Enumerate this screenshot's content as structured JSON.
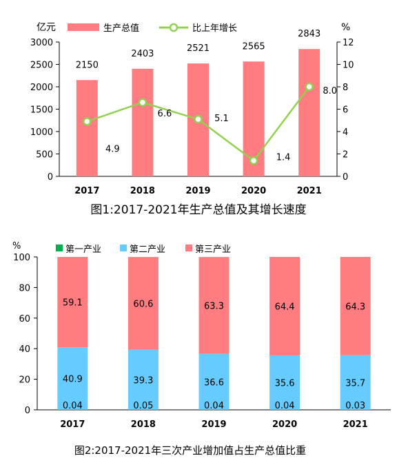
{
  "colors": {
    "gdp_bar": "#FF7C80",
    "growth_line": "#92D050",
    "primary": "#00B050",
    "secondary": "#66CCFF",
    "tertiary": "#FF7C80",
    "axis": "#000000"
  },
  "chart_data": [
    {
      "type": "bar",
      "title": "图1:2017-2021年生产总值及其增长速度",
      "categories": [
        "2017",
        "2018",
        "2019",
        "2020",
        "2021"
      ],
      "ylabel": "亿元",
      "y2label": "%",
      "ylim": [
        0,
        3000
      ],
      "y2lim": [
        0,
        12
      ],
      "yticks": [
        "0",
        "500",
        "1000",
        "1500",
        "2000",
        "2500",
        "3000"
      ],
      "y2ticks": [
        "0",
        "2",
        "4",
        "6",
        "8",
        "10",
        "12"
      ],
      "legend_position": "top",
      "series": [
        {
          "name": "生产总值",
          "kind": "bar",
          "axis": "left",
          "values": [
            2150,
            2403,
            2521,
            2565,
            2843
          ],
          "labels": [
            "2150",
            "2403",
            "2521",
            "2565",
            "2843"
          ]
        },
        {
          "name": "比上年增长",
          "kind": "line",
          "axis": "right",
          "values": [
            4.9,
            6.6,
            5.1,
            1.4,
            8.0
          ],
          "labels": [
            "4.9",
            "6.6",
            "5.1",
            "1.4",
            "8.0"
          ]
        }
      ]
    },
    {
      "type": "bar",
      "stacked": true,
      "title": "图2:2017-2021年三次产业增加值占生产总值比重",
      "categories": [
        "2017",
        "2018",
        "2019",
        "2020",
        "2021"
      ],
      "ylabel": "%",
      "ylim": [
        0,
        100
      ],
      "yticks": [
        "0",
        "20",
        "40",
        "60",
        "80",
        "100"
      ],
      "legend_position": "top",
      "series": [
        {
          "name": "第一产业",
          "values": [
            0.04,
            0.05,
            0.04,
            0.04,
            0.03
          ],
          "labels": [
            "0.04",
            "0.05",
            "0.04",
            "0.04",
            "0.03"
          ]
        },
        {
          "name": "第二产业",
          "values": [
            40.9,
            39.3,
            36.6,
            35.6,
            35.7
          ],
          "labels": [
            "40.9",
            "39.3",
            "36.6",
            "35.6",
            "35.7"
          ]
        },
        {
          "name": "第三产业",
          "values": [
            59.1,
            60.6,
            63.3,
            64.4,
            64.3
          ],
          "labels": [
            "59.1",
            "60.6",
            "63.3",
            "64.4",
            "64.3"
          ]
        }
      ]
    }
  ]
}
